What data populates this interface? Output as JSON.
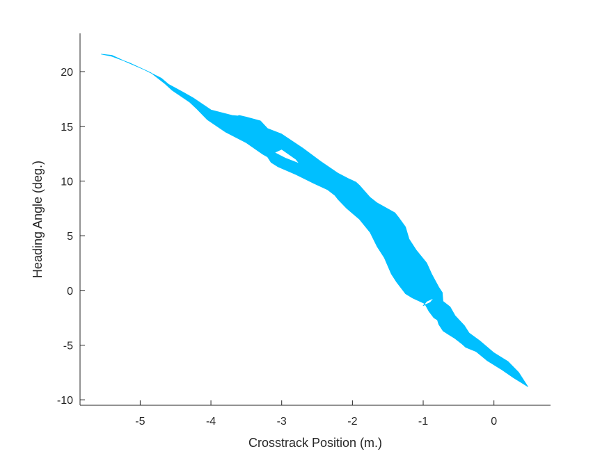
{
  "chart_data": {
    "type": "area",
    "title": "",
    "xlabel": "Crosstrack Position (m.)",
    "ylabel": "Heading Angle (deg.)",
    "xlim": [
      -5.85,
      0.8
    ],
    "ylim": [
      -10.5,
      23.5
    ],
    "xticks": [
      -5,
      -4,
      -3,
      -2,
      -1,
      0
    ],
    "yticks": [
      -10,
      -5,
      0,
      5,
      10,
      15,
      20
    ],
    "xtick_labels": [
      "-5",
      "-4",
      "-3",
      "-2",
      "-1",
      "0"
    ],
    "ytick_labels": [
      "-10",
      "-5",
      "0",
      "5",
      "10",
      "15",
      "20"
    ],
    "grid": false,
    "box": false,
    "fill_color": "#00BFFF",
    "series": [
      {
        "upper_boundary": [
          [
            -5.55,
            21.6
          ],
          [
            -5.4,
            21.5
          ],
          [
            -5.2,
            20.9
          ],
          [
            -4.95,
            20.2
          ],
          [
            -4.7,
            19.4
          ],
          [
            -4.6,
            18.85
          ],
          [
            -4.4,
            18.15
          ],
          [
            -4.25,
            17.6
          ],
          [
            -4.0,
            16.5
          ],
          [
            -3.7,
            16.0
          ],
          [
            -3.62,
            15.95
          ],
          [
            -3.6,
            16.0
          ],
          [
            -3.5,
            15.85
          ],
          [
            -3.3,
            15.5
          ],
          [
            -3.2,
            14.8
          ],
          [
            -3.0,
            14.3
          ],
          [
            -2.7,
            13.0
          ],
          [
            -2.45,
            11.8
          ],
          [
            -2.2,
            10.7
          ],
          [
            -2.05,
            10.2
          ],
          [
            -1.95,
            9.9
          ],
          [
            -1.9,
            9.6
          ],
          [
            -1.75,
            8.5
          ],
          [
            -1.65,
            8.0
          ],
          [
            -1.4,
            7.1
          ],
          [
            -1.35,
            6.7
          ],
          [
            -1.25,
            5.8
          ],
          [
            -1.2,
            4.7
          ],
          [
            -1.1,
            3.7
          ],
          [
            -0.95,
            2.5
          ],
          [
            -0.88,
            1.5
          ],
          [
            -0.78,
            0.3
          ],
          [
            -0.73,
            -0.2
          ],
          [
            -0.72,
            -1.0
          ],
          [
            -0.62,
            -1.5
          ],
          [
            -0.55,
            -2.3
          ],
          [
            -0.42,
            -3.2
          ],
          [
            -0.35,
            -3.9
          ],
          [
            -0.2,
            -4.6
          ],
          [
            0.0,
            -5.7
          ],
          [
            0.2,
            -6.5
          ],
          [
            0.35,
            -7.5
          ],
          [
            0.48,
            -8.8
          ]
        ],
        "lower_boundary": [
          [
            0.48,
            -8.8
          ],
          [
            0.28,
            -8.0
          ],
          [
            0.1,
            -7.2
          ],
          [
            -0.1,
            -6.4
          ],
          [
            -0.25,
            -5.6
          ],
          [
            -0.4,
            -5.2
          ],
          [
            -0.45,
            -4.9
          ],
          [
            -0.55,
            -4.4
          ],
          [
            -0.65,
            -4.0
          ],
          [
            -0.72,
            -3.7
          ],
          [
            -0.78,
            -3.1
          ],
          [
            -0.8,
            -2.7
          ],
          [
            -0.85,
            -2.5
          ],
          [
            -0.92,
            -1.9
          ],
          [
            -0.98,
            -1.2
          ],
          [
            -1.15,
            -0.7
          ],
          [
            -1.25,
            -0.3
          ],
          [
            -1.38,
            0.8
          ],
          [
            -1.45,
            1.5
          ],
          [
            -1.55,
            3.0
          ],
          [
            -1.65,
            4.0
          ],
          [
            -1.75,
            5.3
          ],
          [
            -1.9,
            6.5
          ],
          [
            -2.08,
            7.5
          ],
          [
            -2.2,
            8.3
          ],
          [
            -2.25,
            8.7
          ],
          [
            -2.35,
            9.2
          ],
          [
            -2.55,
            9.8
          ],
          [
            -2.8,
            10.6
          ],
          [
            -3.05,
            11.3
          ],
          [
            -3.15,
            11.7
          ],
          [
            -3.2,
            12.2
          ],
          [
            -3.28,
            12.5
          ],
          [
            -3.5,
            13.5
          ],
          [
            -3.8,
            14.5
          ],
          [
            -4.05,
            15.6
          ],
          [
            -4.2,
            16.6
          ],
          [
            -4.3,
            17.2
          ],
          [
            -4.55,
            18.3
          ],
          [
            -4.65,
            18.9
          ],
          [
            -4.85,
            19.9
          ],
          [
            -5.15,
            20.8
          ],
          [
            -5.4,
            21.4
          ],
          [
            -5.55,
            21.6
          ]
        ],
        "holes": [
          [
            [
              -2.75,
              11.6
            ],
            [
              -2.95,
              12.1
            ],
            [
              -3.1,
              12.6
            ],
            [
              -3.0,
              12.9
            ],
            [
              -2.8,
              12.0
            ]
          ],
          [
            [
              -0.85,
              -0.7
            ],
            [
              -0.95,
              -1.0
            ],
            [
              -1.0,
              -1.4
            ],
            [
              -0.9,
              -1.1
            ]
          ]
        ]
      }
    ]
  }
}
